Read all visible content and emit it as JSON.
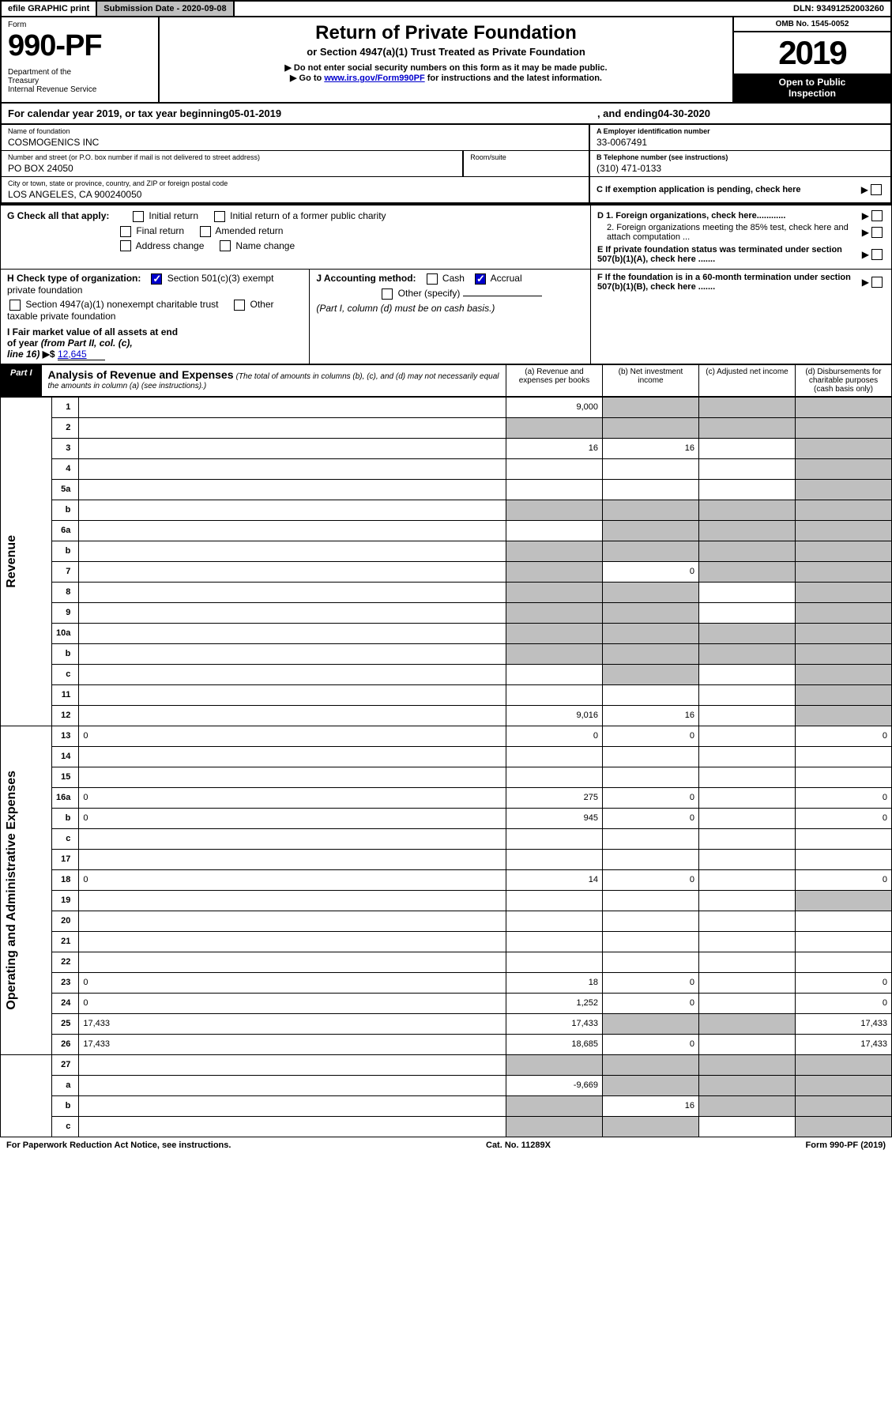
{
  "topbar": {
    "efile": "efile GRAPHIC print",
    "submission_label": "Submission Date - 2020-09-08",
    "dln": "DLN: 93491252003260"
  },
  "header": {
    "form_word": "Form",
    "form_number": "990-PF",
    "dept": "Department of the Treasury\nInternal Revenue Service",
    "title": "Return of Private Foundation",
    "subtitle": "or Section 4947(a)(1) Trust Treated as Private Foundation",
    "note1": "▶ Do not enter social security numbers on this form as it may be made public.",
    "note2_prefix": "▶ Go to ",
    "note2_link": "www.irs.gov/Form990PF",
    "note2_suffix": " for instructions and the latest information.",
    "omb": "OMB No. 1545-0052",
    "year": "2019",
    "open_public": "Open to Public Inspection"
  },
  "calrow": {
    "prefix": "For calendar year 2019, or tax year beginning ",
    "begin": "05-01-2019",
    "mid": ", and ending ",
    "end": "04-30-2020"
  },
  "id": {
    "name_label": "Name of foundation",
    "name": "COSMOGENICS INC",
    "ein_label": "A Employer identification number",
    "ein": "33-0067491",
    "addr_label": "Number and street (or P.O. box number if mail is not delivered to street address)",
    "addr": "PO BOX 24050",
    "room_label": "Room/suite",
    "tel_label": "B Telephone number (see instructions)",
    "tel": "(310) 471-0133",
    "city_label": "City or town, state or province, country, and ZIP or foreign postal code",
    "city": "LOS ANGELES, CA  900240050",
    "c_label": "C If exemption application is pending, check here"
  },
  "secG": {
    "label": "G Check all that apply:",
    "options": [
      "Initial return",
      "Initial return of a former public charity",
      "Final return",
      "Amended return",
      "Address change",
      "Name change"
    ],
    "d1": "D 1. Foreign organizations, check here............",
    "d2": "2. Foreign organizations meeting the 85% test, check here and attach computation ...",
    "e": "E  If private foundation status was terminated under section 507(b)(1)(A), check here .......",
    "f": "F  If the foundation is in a 60-month termination under section 507(b)(1)(B), check here ......."
  },
  "secH": {
    "label": "H Check type of organization:",
    "opt1": "Section 501(c)(3) exempt private foundation",
    "opt2": "Section 4947(a)(1) nonexempt charitable trust",
    "opt3": "Other taxable private foundation"
  },
  "secI": {
    "label": "I Fair market value of all assets at end of year (from Part II, col. (c), line 16) ▶$ ",
    "value": "12,645"
  },
  "secJ": {
    "label": "J Accounting method:",
    "cash": "Cash",
    "accrual": "Accrual",
    "other": "Other (specify)",
    "note": "(Part I, column (d) must be on cash basis.)"
  },
  "part1": {
    "label": "Part I",
    "title": "Analysis of Revenue and Expenses",
    "titlenote": "(The total of amounts in columns (b), (c), and (d) may not necessarily equal the amounts in column (a) (see instructions).)",
    "col_a": "(a)   Revenue and expenses per books",
    "col_b": "(b)  Net investment income",
    "col_c": "(c)  Adjusted net income",
    "col_d": "(d)  Disbursements for charitable purposes (cash basis only)"
  },
  "vlabels": {
    "revenue": "Revenue",
    "expenses": "Operating and Administrative Expenses"
  },
  "rows": [
    {
      "n": "1",
      "d": "",
      "a": "9,000",
      "b": "",
      "c": "",
      "sA": false,
      "sB": true,
      "sC": true,
      "sD": true
    },
    {
      "n": "2",
      "d": "",
      "a": "",
      "b": "",
      "c": "",
      "sA": true,
      "sB": true,
      "sC": true,
      "sD": true
    },
    {
      "n": "3",
      "d": "",
      "a": "16",
      "b": "16",
      "c": "",
      "sA": false,
      "sB": false,
      "sC": false,
      "sD": true
    },
    {
      "n": "4",
      "d": "",
      "a": "",
      "b": "",
      "c": "",
      "sA": false,
      "sB": false,
      "sC": false,
      "sD": true
    },
    {
      "n": "5a",
      "d": "",
      "a": "",
      "b": "",
      "c": "",
      "sA": false,
      "sB": false,
      "sC": false,
      "sD": true
    },
    {
      "n": "b",
      "d": "",
      "a": "",
      "b": "",
      "c": "",
      "sA": true,
      "sB": true,
      "sC": true,
      "sD": true
    },
    {
      "n": "6a",
      "d": "",
      "a": "",
      "b": "",
      "c": "",
      "sA": false,
      "sB": true,
      "sC": true,
      "sD": true
    },
    {
      "n": "b",
      "d": "",
      "a": "",
      "b": "",
      "c": "",
      "sA": true,
      "sB": true,
      "sC": true,
      "sD": true
    },
    {
      "n": "7",
      "d": "",
      "a": "",
      "b": "0",
      "c": "",
      "sA": true,
      "sB": false,
      "sC": true,
      "sD": true
    },
    {
      "n": "8",
      "d": "",
      "a": "",
      "b": "",
      "c": "",
      "sA": true,
      "sB": true,
      "sC": false,
      "sD": true
    },
    {
      "n": "9",
      "d": "",
      "a": "",
      "b": "",
      "c": "",
      "sA": true,
      "sB": true,
      "sC": false,
      "sD": true
    },
    {
      "n": "10a",
      "d": "",
      "a": "",
      "b": "",
      "c": "",
      "sA": true,
      "sB": true,
      "sC": true,
      "sD": true
    },
    {
      "n": "b",
      "d": "",
      "a": "",
      "b": "",
      "c": "",
      "sA": true,
      "sB": true,
      "sC": true,
      "sD": true
    },
    {
      "n": "c",
      "d": "",
      "a": "",
      "b": "",
      "c": "",
      "sA": false,
      "sB": true,
      "sC": false,
      "sD": true
    },
    {
      "n": "11",
      "d": "",
      "a": "",
      "b": "",
      "c": "",
      "sA": false,
      "sB": false,
      "sC": false,
      "sD": true
    },
    {
      "n": "12",
      "d": "",
      "a": "9,016",
      "b": "16",
      "c": "",
      "sA": false,
      "sB": false,
      "sC": false,
      "sD": true
    },
    {
      "n": "13",
      "d": "0",
      "a": "0",
      "b": "0",
      "c": "",
      "sA": false,
      "sB": false,
      "sC": false,
      "sD": false
    },
    {
      "n": "14",
      "d": "",
      "a": "",
      "b": "",
      "c": "",
      "sA": false,
      "sB": false,
      "sC": false,
      "sD": false
    },
    {
      "n": "15",
      "d": "",
      "a": "",
      "b": "",
      "c": "",
      "sA": false,
      "sB": false,
      "sC": false,
      "sD": false
    },
    {
      "n": "16a",
      "d": "0",
      "a": "275",
      "b": "0",
      "c": "",
      "sA": false,
      "sB": false,
      "sC": false,
      "sD": false
    },
    {
      "n": "b",
      "d": "0",
      "a": "945",
      "b": "0",
      "c": "",
      "sA": false,
      "sB": false,
      "sC": false,
      "sD": false
    },
    {
      "n": "c",
      "d": "",
      "a": "",
      "b": "",
      "c": "",
      "sA": false,
      "sB": false,
      "sC": false,
      "sD": false
    },
    {
      "n": "17",
      "d": "",
      "a": "",
      "b": "",
      "c": "",
      "sA": false,
      "sB": false,
      "sC": false,
      "sD": false
    },
    {
      "n": "18",
      "d": "0",
      "a": "14",
      "b": "0",
      "c": "",
      "sA": false,
      "sB": false,
      "sC": false,
      "sD": false
    },
    {
      "n": "19",
      "d": "",
      "a": "",
      "b": "",
      "c": "",
      "sA": false,
      "sB": false,
      "sC": false,
      "sD": true
    },
    {
      "n": "20",
      "d": "",
      "a": "",
      "b": "",
      "c": "",
      "sA": false,
      "sB": false,
      "sC": false,
      "sD": false
    },
    {
      "n": "21",
      "d": "",
      "a": "",
      "b": "",
      "c": "",
      "sA": false,
      "sB": false,
      "sC": false,
      "sD": false
    },
    {
      "n": "22",
      "d": "",
      "a": "",
      "b": "",
      "c": "",
      "sA": false,
      "sB": false,
      "sC": false,
      "sD": false
    },
    {
      "n": "23",
      "d": "0",
      "a": "18",
      "b": "0",
      "c": "",
      "sA": false,
      "sB": false,
      "sC": false,
      "sD": false
    },
    {
      "n": "24",
      "d": "0",
      "a": "1,252",
      "b": "0",
      "c": "",
      "sA": false,
      "sB": false,
      "sC": false,
      "sD": false
    },
    {
      "n": "25",
      "d": "17,433",
      "a": "17,433",
      "b": "",
      "c": "",
      "sA": false,
      "sB": true,
      "sC": true,
      "sD": false
    },
    {
      "n": "26",
      "d": "17,433",
      "a": "18,685",
      "b": "0",
      "c": "",
      "sA": false,
      "sB": false,
      "sC": false,
      "sD": false
    },
    {
      "n": "27",
      "d": "",
      "a": "",
      "b": "",
      "c": "",
      "sA": true,
      "sB": true,
      "sC": true,
      "sD": true
    },
    {
      "n": "a",
      "d": "",
      "a": "-9,669",
      "b": "",
      "c": "",
      "sA": false,
      "sB": true,
      "sC": true,
      "sD": true
    },
    {
      "n": "b",
      "d": "",
      "a": "",
      "b": "16",
      "c": "",
      "sA": true,
      "sB": false,
      "sC": true,
      "sD": true
    },
    {
      "n": "c",
      "d": "",
      "a": "",
      "b": "",
      "c": "",
      "sA": true,
      "sB": true,
      "sC": false,
      "sD": true
    }
  ],
  "footer": {
    "left": "For Paperwork Reduction Act Notice, see instructions.",
    "mid": "Cat. No. 11289X",
    "right": "Form 990-PF (2019)"
  }
}
